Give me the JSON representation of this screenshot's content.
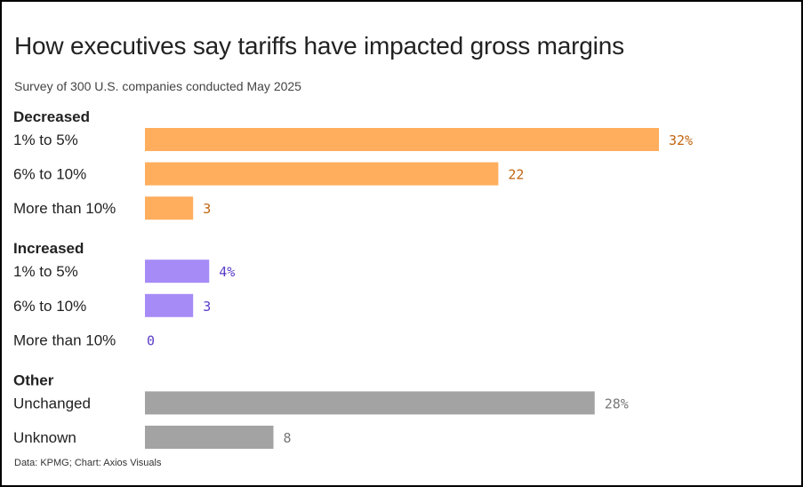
{
  "title": "How executives say tariffs have impacted gross margins",
  "subtitle": "Survey of 300 U.S. companies conducted May 2025",
  "source": "Data: KPMG; Chart: Axios Visuals",
  "colors": {
    "decreased": "#FFAE5E",
    "decreased_label": "#C0650F",
    "increased": "#A68BF7",
    "increased_label": "#5A3CC8",
    "other": "#A3A3A3",
    "other_label": "#777777"
  },
  "chart_data": {
    "type": "bar",
    "orientation": "horizontal",
    "xlim": [
      0,
      32
    ],
    "groups": [
      {
        "name": "Decreased",
        "color_key": "decreased",
        "items": [
          {
            "category": "1% to 5%",
            "value": 32,
            "label": "32%"
          },
          {
            "category": "6% to 10%",
            "value": 22,
            "label": "22"
          },
          {
            "category": "More than 10%",
            "value": 3,
            "label": "3"
          }
        ]
      },
      {
        "name": "Increased",
        "color_key": "increased",
        "items": [
          {
            "category": "1% to 5%",
            "value": 4,
            "label": "4%"
          },
          {
            "category": "6% to 10%",
            "value": 3,
            "label": "3"
          },
          {
            "category": "More than 10%",
            "value": 0,
            "label": "0"
          }
        ]
      },
      {
        "name": "Other",
        "color_key": "other",
        "items": [
          {
            "category": "Unchanged",
            "value": 28,
            "label": "28%"
          },
          {
            "category": "Unknown",
            "value": 8,
            "label": "8"
          }
        ]
      }
    ]
  }
}
